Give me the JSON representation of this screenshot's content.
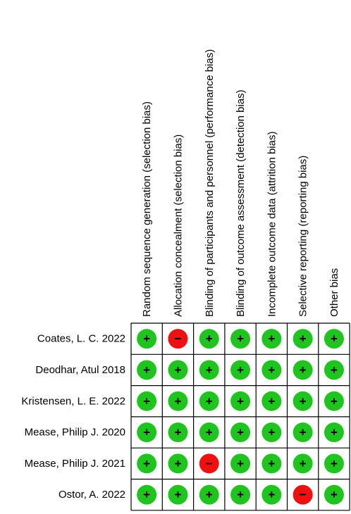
{
  "columns": [
    "Random sequence generation (selection bias)",
    "Allocation concealment (selection bias)",
    "Blinding of participants and personnel (performance bias)",
    "Blinding of outcome assessment (detection bias)",
    "Incomplete outcome data (attrition bias)",
    "Selective reporting (reporting bias)",
    "Other bias"
  ],
  "rows": [
    {
      "label": "Coates, L. C. 2022",
      "judgments": [
        "+",
        "−",
        "+",
        "+",
        "+",
        "+",
        "+"
      ]
    },
    {
      "label": "Deodhar, Atul 2018",
      "judgments": [
        "+",
        "+",
        "+",
        "+",
        "+",
        "+",
        "+"
      ]
    },
    {
      "label": "Kristensen, L. E. 2022",
      "judgments": [
        "+",
        "+",
        "+",
        "+",
        "+",
        "+",
        "+"
      ]
    },
    {
      "label": "Mease, Philip J. 2020",
      "judgments": [
        "+",
        "+",
        "+",
        "+",
        "+",
        "+",
        "+"
      ]
    },
    {
      "label": "Mease, Philip J. 2021",
      "judgments": [
        "+",
        "+",
        "−",
        "+",
        "+",
        "+",
        "+"
      ]
    },
    {
      "label": "Ostor, A. 2022",
      "judgments": [
        "+",
        "+",
        "+",
        "+",
        "+",
        "−",
        "+"
      ]
    }
  ],
  "judgment_colors": {
    "+": "#1fc41f",
    "−": "#ee1111"
  }
}
